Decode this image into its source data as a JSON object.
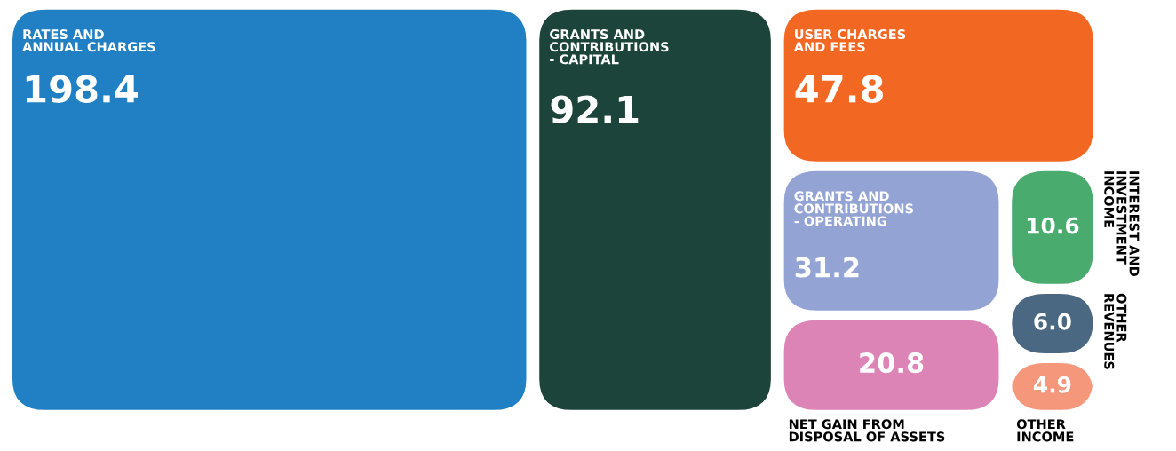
{
  "chart_data": {
    "type": "other",
    "categories": [
      "RATES AND\nANNUAL CHARGES",
      "GRANTS AND\nCONTRIBUTIONS\n- CAPITAL",
      "USER CHARGES\nAND FEES",
      "GRANTS AND\nCONTRIBUTIONS\n- OPERATING",
      "NET GAIN FROM\nDISPOSAL OF ASSETS",
      "INTEREST AND\nINVESTMENT\nINCOME",
      "OTHER\nREVENUES",
      "OTHER\nINCOME"
    ],
    "values": [
      198.4,
      92.1,
      47.8,
      31.2,
      20.8,
      10.6,
      6.0,
      4.9
    ],
    "colors": [
      "#2180c4",
      "#1d443a",
      "#f26722",
      "#93a3d4",
      "#dd84b7",
      "#4aab6e",
      "#4a6882",
      "#f5977a"
    ],
    "value_labels": [
      "198.4",
      "92.1",
      "47.8",
      "31.2",
      "20.8",
      "10.6",
      "6.0",
      "4.9"
    ]
  }
}
